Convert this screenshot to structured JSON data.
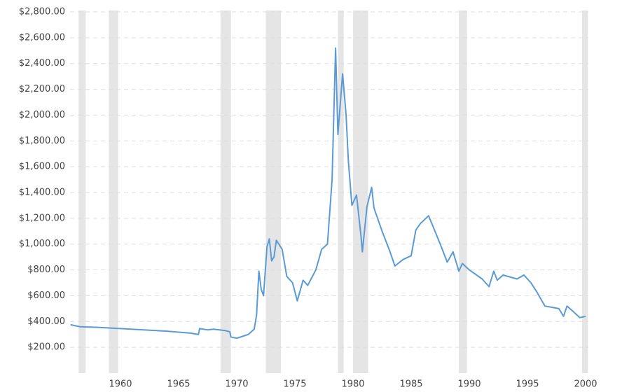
{
  "chart_data": {
    "type": "line",
    "x": [
      1955.7,
      1956.5,
      1958,
      1960,
      1962,
      1964,
      1966,
      1966.7,
      1966.8,
      1967.5,
      1968,
      1969,
      1969.4,
      1969.5,
      1970,
      1970.5,
      1971,
      1971.5,
      1971.7,
      1971.9,
      1972.1,
      1972.3,
      1972.6,
      1972.8,
      1973.0,
      1973.2,
      1973.4,
      1973.9,
      1974.3,
      1974.8,
      1975.2,
      1975.7,
      1976.1,
      1976.8,
      1977.3,
      1977.8,
      1978.2,
      1978.5,
      1978.7,
      1979.1,
      1979.4,
      1979.6,
      1979.9,
      1980.3,
      1980.7,
      1980.8,
      1981.2,
      1981.6,
      1981.8,
      1982.5,
      1983.1,
      1983.6,
      1984.3,
      1985.0,
      1985.4,
      1985.8,
      1986.5,
      1987.0,
      1987.5,
      1988.1,
      1988.6,
      1989.1,
      1989.4,
      1990.0,
      1991.1,
      1991.7,
      1992.1,
      1992.4,
      1992.9,
      1994.1,
      1994.7,
      1995.3,
      1995.8,
      1996.5,
      1997.1,
      1997.7,
      1998.1,
      1998.4,
      1998.9,
      1999.5,
      2000.0
    ],
    "series": [
      {
        "color": "#5b9bd5",
        "values": [
          375,
          360,
          355,
          345,
          335,
          325,
          310,
          300,
          345,
          335,
          340,
          330,
          320,
          280,
          270,
          285,
          300,
          340,
          450,
          790,
          650,
          600,
          980,
          1040,
          870,
          900,
          1030,
          960,
          750,
          700,
          560,
          720,
          680,
          800,
          960,
          1000,
          1500,
          2520,
          1850,
          2320,
          2000,
          1640,
          1300,
          1380,
          1050,
          940,
          1290,
          1440,
          1280,
          1100,
          960,
          830,
          880,
          910,
          1110,
          1160,
          1220,
          1110,
          1000,
          860,
          940,
          790,
          850,
          800,
          730,
          670,
          790,
          720,
          760,
          730,
          760,
          700,
          630,
          520,
          510,
          500,
          440,
          520,
          480,
          430,
          440
        ]
      }
    ],
    "recessions": [
      [
        1956.4,
        1957.0
      ],
      [
        1959.0,
        1959.8
      ],
      [
        1968.6,
        1969.5
      ],
      [
        1972.5,
        1973.8
      ],
      [
        1978.7,
        1979.2
      ],
      [
        1980.0,
        1981.3
      ],
      [
        1989.1,
        1989.8
      ],
      [
        1999.7,
        2000.2
      ]
    ],
    "xlim": [
      1955.66,
      2000.24
    ],
    "xticks": [
      1960,
      1965,
      1970,
      1975,
      1980,
      1985,
      1990,
      1995,
      2000
    ],
    "ylim": [
      0,
      2800
    ],
    "yticks": [
      {
        "value": 200,
        "label": "$200.00"
      },
      {
        "value": 400,
        "label": "$400.00"
      },
      {
        "value": 600,
        "label": "$600.00"
      },
      {
        "value": 800,
        "label": "$800.00"
      },
      {
        "value": 1000,
        "label": "$1,000.00"
      },
      {
        "value": 1200,
        "label": "$1,200.00"
      },
      {
        "value": 1400,
        "label": "$1,400.00"
      },
      {
        "value": 1600,
        "label": "$1,600.00"
      },
      {
        "value": 1800,
        "label": "$1,800.00"
      },
      {
        "value": 2000,
        "label": "$2,000.00"
      },
      {
        "value": 2200,
        "label": "$2,200.00"
      },
      {
        "value": 2400,
        "label": "$2,400.00"
      },
      {
        "value": 2600,
        "label": "$2,600.00"
      },
      {
        "value": 2800,
        "label": "$2,800.00"
      }
    ],
    "grid": true
  }
}
